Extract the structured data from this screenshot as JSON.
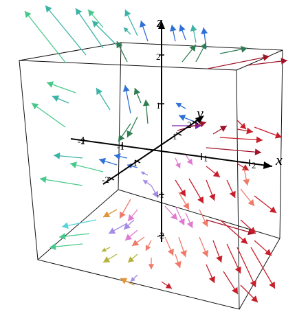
{
  "figure": {
    "kind": "3D vector field plot",
    "axes": {
      "x": {
        "name": "x",
        "ticks": [
          "-2",
          "-1",
          "1",
          "2"
        ]
      },
      "y": {
        "name": "y",
        "ticks": [
          "-2",
          "-1",
          "1",
          "2"
        ]
      },
      "z": {
        "name": "z",
        "ticks": [
          "-2",
          "-1",
          "1",
          "2"
        ]
      }
    },
    "box": true,
    "arrow_colors": {
      "teal": "#3bb3a6",
      "green": "#46c98a",
      "dark_green": "#2e7d52",
      "blue": "#2e6fd8",
      "red": "#c81d2a",
      "crimson": "#a0142a",
      "salmon": "#f07a6a",
      "pink": "#e07ad0",
      "lavender": "#a48be6",
      "olive": "#b4b23a",
      "orange": "#e0953a",
      "cyan": "#56d3d8",
      "purple": "#7a1fa8"
    }
  }
}
